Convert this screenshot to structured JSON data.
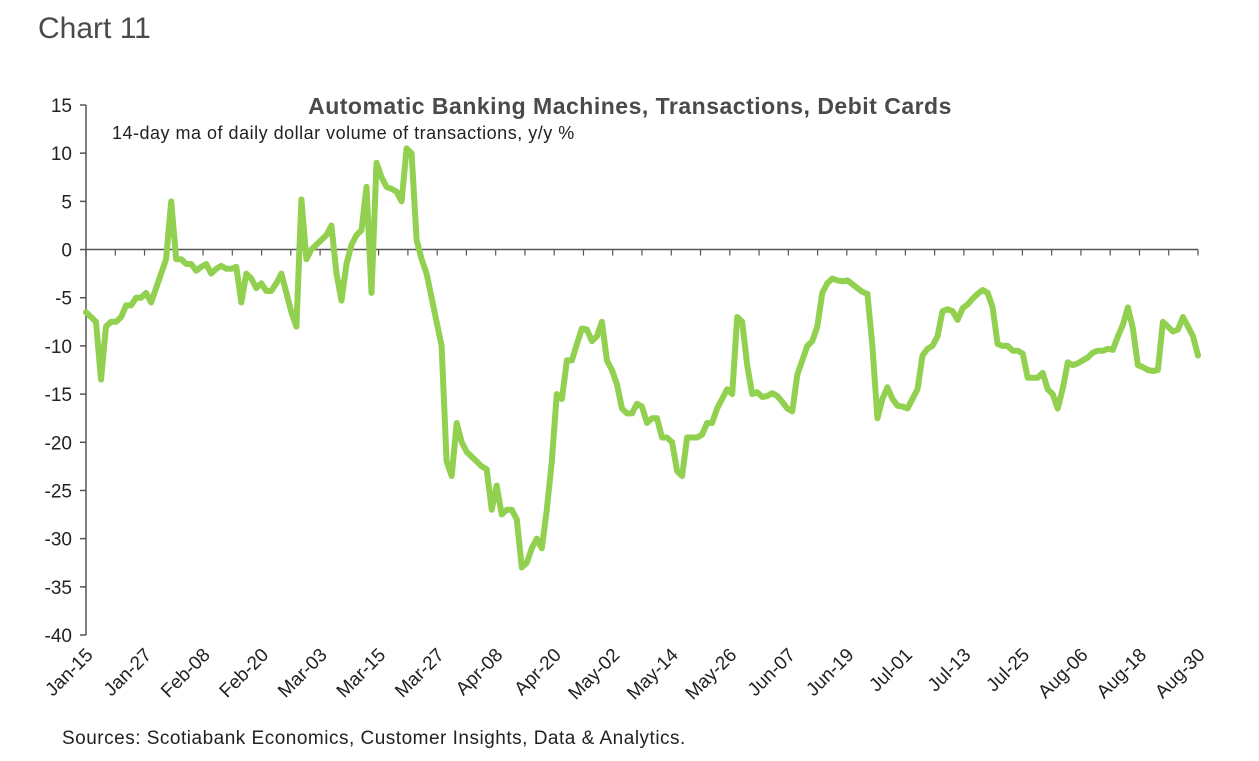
{
  "header": {
    "chart_number": "Chart 11"
  },
  "source_note": "Sources: Scotiabank Economics, Customer Insights, Data & Analytics.",
  "colors": {
    "line": "#92D050",
    "axis": "#555555",
    "text": "#222222"
  },
  "chart_data": {
    "type": "line",
    "title": "Automatic Banking Machines, Transactions, Debit Cards",
    "subtitle": "14-day ma of daily dollar volume of transactions, y/y %",
    "xlabel": "",
    "ylabel": "",
    "ylim": [
      -40,
      15
    ],
    "yticks": [
      15,
      10,
      5,
      0,
      -5,
      -10,
      -15,
      -20,
      -25,
      -30,
      -35,
      -40
    ],
    "x_tick_labels": [
      "Jan-15",
      "Jan-27",
      "Feb-08",
      "Feb-20",
      "Mar-03",
      "Mar-15",
      "Mar-27",
      "Apr-08",
      "Apr-20",
      "May-02",
      "May-14",
      "May-26",
      "Jun-07",
      "Jun-19",
      "Jul-01",
      "Jul-13",
      "Jul-25",
      "Aug-06",
      "Aug-18",
      "Aug-30"
    ],
    "grid": false,
    "legend": "none",
    "series": [
      {
        "start_date": "Jan-15",
        "end_date": "Aug-30",
        "values": [
          -6.5,
          -7,
          -7.5,
          -13.5,
          -8,
          -7.5,
          -7.5,
          -7,
          -5.8,
          -5.8,
          -5,
          -5,
          -4.5,
          -5.5,
          -4,
          -2.5,
          -1,
          5,
          -1,
          -1,
          -1.5,
          -1.5,
          -2.2,
          -1.8,
          -1.5,
          -2.5,
          -2,
          -1.7,
          -2,
          -2,
          -1.8,
          -5.5,
          -2.5,
          -3,
          -4,
          -3.5,
          -4.3,
          -4.3,
          -3.5,
          -2.5,
          -4.5,
          -6.5,
          -8,
          5.2,
          -1,
          0,
          0.5,
          1,
          1.5,
          2.5,
          -2.5,
          -5.3,
          -1.5,
          0.5,
          1.5,
          2,
          6.5,
          -4.5,
          9,
          7.5,
          6.5,
          6.3,
          6,
          5,
          10.5,
          10,
          1,
          -1,
          -2.5,
          -5,
          -7.5,
          -10,
          -22,
          -23.5,
          -18,
          -20,
          -21,
          -21.5,
          -22,
          -22.5,
          -22.8,
          -27,
          -24.5,
          -27.5,
          -27,
          -27,
          -28,
          -33,
          -32.5,
          -31,
          -30,
          -31,
          -27,
          -22,
          -15,
          -15.5,
          -11.5,
          -11.5,
          -9.8,
          -8.2,
          -8.3,
          -9.5,
          -9,
          -7.5,
          -11.5,
          -12.5,
          -14,
          -16.5,
          -17,
          -17,
          -16,
          -16.3,
          -18,
          -17.5,
          -17.5,
          -19.5,
          -19.5,
          -20,
          -23,
          -23.5,
          -19.5,
          -19.5,
          -19.5,
          -19.2,
          -18,
          -18,
          -16.5,
          -15.5,
          -14.5,
          -15,
          -7,
          -7.5,
          -12,
          -15,
          -14.8,
          -15.3,
          -15.2,
          -14.9,
          -15.2,
          -15.8,
          -16.5,
          -16.8,
          -13,
          -11.5,
          -10,
          -9.5,
          -8,
          -4.5,
          -3.5,
          -3,
          -3.2,
          -3.3,
          -3.2,
          -3.6,
          -4,
          -4.4,
          -4.6,
          -10,
          -17.5,
          -15.5,
          -14.3,
          -15.5,
          -16.2,
          -16.3,
          -16.5,
          -15.5,
          -14.5,
          -11,
          -10.3,
          -10,
          -9,
          -6.4,
          -6.2,
          -6.4,
          -7.3,
          -6.1,
          -5.7,
          -5.1,
          -4.6,
          -4.2,
          -4.5,
          -6,
          -9.8,
          -10,
          -10,
          -10.5,
          -10.5,
          -10.8,
          -13.3,
          -13.3,
          -13.3,
          -12.8,
          -14.5,
          -15,
          -16.5,
          -14.4,
          -11.7,
          -12,
          -11.8,
          -11.5,
          -11.2,
          -10.7,
          -10.5,
          -10.5,
          -10.3,
          -10.4,
          -9,
          -7.8,
          -6,
          -8.2,
          -12,
          -12.2,
          -12.5,
          -12.6,
          -12.5,
          -7.5,
          -8,
          -8.5,
          -8.3,
          -7,
          -8,
          -9,
          -11
        ]
      }
    ]
  }
}
